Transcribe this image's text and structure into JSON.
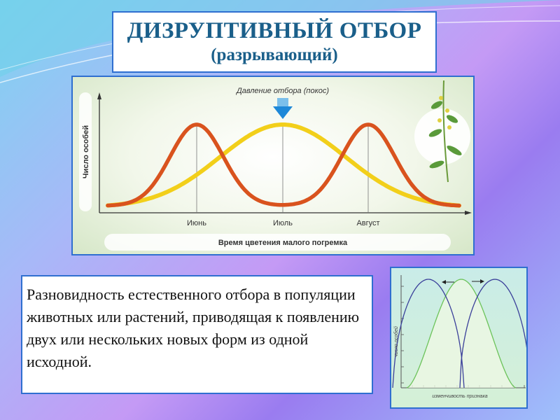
{
  "title": {
    "main": "ДИЗРУПТИВНЫЙ ОТБОР",
    "sub": "(разрывающий)"
  },
  "description": "Разновидность естественного отбора в популяции животных или растений, приводящая к появлению двух или нескольких новых форм из одной исходной.",
  "colors": {
    "border": "#2f6fd0",
    "title": "#1a5f8a",
    "red_curve": "#d9531e",
    "yellow_curve": "#f2cf1a",
    "blue_curve": "#3a3f9a",
    "green_curve": "#6cc35a",
    "arrow": "#1e88d8"
  },
  "chart_data": [
    {
      "type": "line",
      "annotation": "Давление отбора (покос)",
      "ylabel": "Число особей",
      "xlabel": "Время цветения малого погремка",
      "categories": [
        "Июнь",
        "Июль",
        "Август"
      ],
      "series": [
        {
          "color": "red",
          "peaks": [
            "Июнь",
            "Август"
          ]
        },
        {
          "color": "yellow",
          "peaks": [
            "Июль"
          ]
        }
      ],
      "arrow_icon": "down-arrow-icon",
      "image": "plant-illustration"
    },
    {
      "type": "line",
      "ylabel": "число особей",
      "xlabel": "изменчивость признака",
      "series": [
        {
          "color": "blue",
          "peaks": [
            "left",
            "right"
          ]
        },
        {
          "color": "green",
          "peaks": [
            "center"
          ]
        }
      ],
      "arrows": [
        "left-arrow-icon",
        "right-arrow-icon"
      ]
    }
  ]
}
